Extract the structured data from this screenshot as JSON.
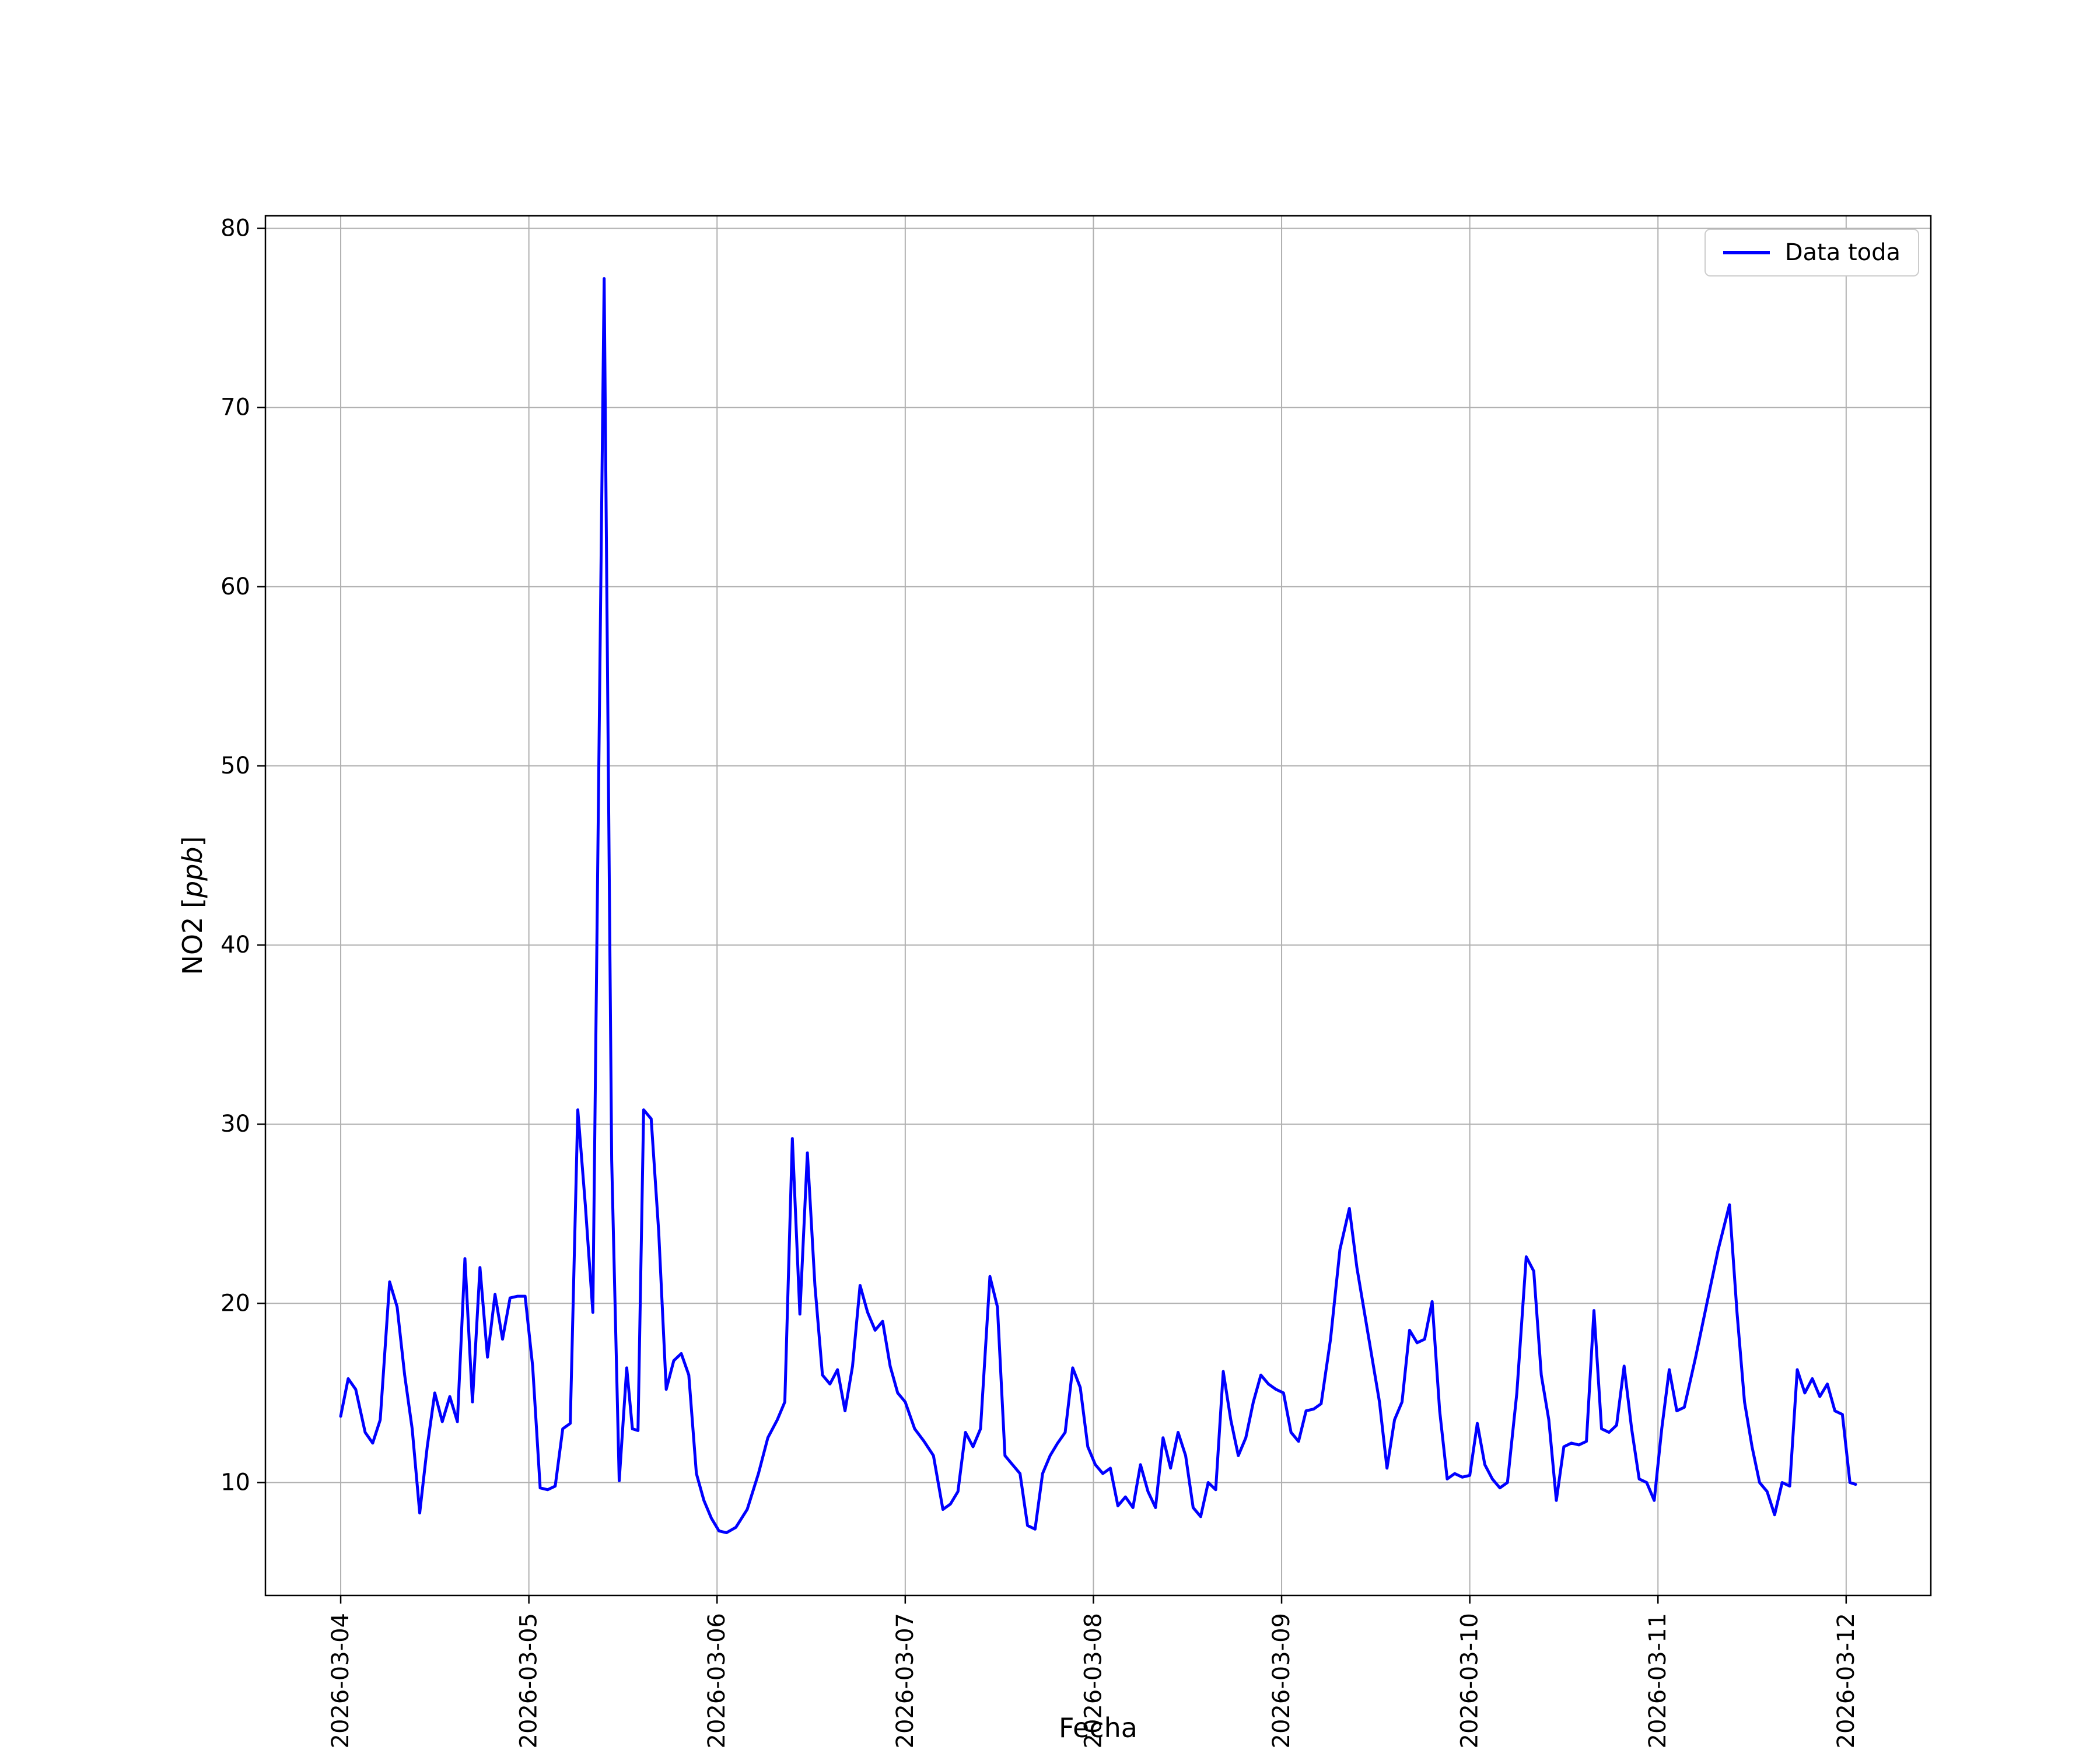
{
  "figure": {
    "background": "#ffffff"
  },
  "chart_data": {
    "type": "line",
    "title": "",
    "xlabel": "Fecha",
    "ylabel": "NO2 [ppb]",
    "ylabel_parts": {
      "prefix": "NO2 [",
      "italic": "ppb",
      "suffix": "]"
    },
    "legend_label": "Data toda",
    "legend": [
      "Data toda"
    ],
    "legend_position": "upper right",
    "grid": true,
    "line_color": "#0000ff",
    "grid_color": "#b0b0b0",
    "axis_color": "#000000",
    "x_tick_labels": [
      "2026-03-04",
      "2026-03-05",
      "2026-03-06",
      "2026-03-07",
      "2026-03-08",
      "2026-03-09",
      "2026-03-10",
      "2026-03-11",
      "2026-03-12"
    ],
    "x_tick_days": [
      0,
      1,
      2,
      3,
      4,
      5,
      6,
      7,
      8
    ],
    "y_ticks": [
      10,
      20,
      30,
      40,
      50,
      60,
      70,
      80
    ],
    "xlim_days": [
      -0.4,
      8.45
    ],
    "ylim": [
      3.7,
      80.7
    ],
    "x_unit": "days since 2026-03-04 00:00",
    "series": [
      {
        "name": "Data toda",
        "x_days": [
          0.0,
          0.04,
          0.08,
          0.13,
          0.17,
          0.21,
          0.26,
          0.3,
          0.34,
          0.38,
          0.42,
          0.46,
          0.5,
          0.54,
          0.58,
          0.62,
          0.66,
          0.7,
          0.74,
          0.78,
          0.82,
          0.86,
          0.9,
          0.94,
          0.98,
          1.02,
          1.06,
          1.1,
          1.14,
          1.18,
          1.22,
          1.26,
          1.3,
          1.34,
          1.4,
          1.44,
          1.48,
          1.52,
          1.55,
          1.58,
          1.61,
          1.65,
          1.69,
          1.73,
          1.77,
          1.81,
          1.85,
          1.89,
          1.93,
          1.97,
          2.01,
          2.05,
          2.1,
          2.16,
          2.22,
          2.27,
          2.32,
          2.36,
          2.4,
          2.44,
          2.48,
          2.52,
          2.56,
          2.6,
          2.64,
          2.68,
          2.72,
          2.76,
          2.8,
          2.84,
          2.88,
          2.92,
          2.96,
          3.0,
          3.05,
          3.1,
          3.15,
          3.2,
          3.24,
          3.28,
          3.32,
          3.36,
          3.4,
          3.45,
          3.49,
          3.53,
          3.57,
          3.61,
          3.65,
          3.69,
          3.73,
          3.77,
          3.81,
          3.85,
          3.89,
          3.93,
          3.97,
          4.01,
          4.05,
          4.09,
          4.13,
          4.17,
          4.21,
          4.25,
          4.29,
          4.33,
          4.37,
          4.41,
          4.45,
          4.49,
          4.53,
          4.57,
          4.61,
          4.65,
          4.69,
          4.73,
          4.77,
          4.81,
          4.85,
          4.89,
          4.93,
          4.97,
          5.01,
          5.05,
          5.09,
          5.13,
          5.17,
          5.21,
          5.26,
          5.31,
          5.36,
          5.4,
          5.44,
          5.48,
          5.52,
          5.56,
          5.6,
          5.64,
          5.68,
          5.72,
          5.76,
          5.8,
          5.84,
          5.88,
          5.92,
          5.96,
          6.0,
          6.04,
          6.08,
          6.12,
          6.16,
          6.2,
          6.25,
          6.3,
          6.34,
          6.38,
          6.42,
          6.46,
          6.5,
          6.54,
          6.58,
          6.62,
          6.66,
          6.7,
          6.74,
          6.78,
          6.82,
          6.86,
          6.9,
          6.94,
          6.98,
          7.02,
          7.06,
          7.1,
          7.14,
          7.2,
          7.26,
          7.32,
          7.38,
          7.42,
          7.46,
          7.5,
          7.54,
          7.58,
          7.62,
          7.66,
          7.7,
          7.74,
          7.78,
          7.82,
          7.86,
          7.9,
          7.94,
          7.98,
          8.02,
          8.05
        ],
        "y": [
          13.7,
          15.8,
          15.2,
          12.8,
          12.2,
          13.5,
          21.2,
          19.8,
          16.0,
          13.0,
          8.3,
          12.0,
          15.0,
          13.4,
          14.8,
          13.4,
          22.5,
          14.5,
          22.0,
          17.0,
          20.5,
          18.0,
          20.3,
          20.4,
          20.4,
          16.5,
          9.7,
          9.6,
          9.8,
          13.0,
          13.3,
          30.8,
          25.5,
          19.5,
          77.2,
          28.0,
          10.1,
          16.4,
          13.0,
          12.9,
          30.8,
          30.3,
          24.0,
          15.2,
          16.8,
          17.2,
          16.0,
          10.5,
          9.0,
          8.0,
          7.3,
          7.2,
          7.5,
          8.5,
          10.5,
          12.5,
          13.5,
          14.5,
          29.2,
          19.4,
          28.4,
          21.0,
          16.0,
          15.5,
          16.3,
          14.0,
          16.5,
          21.0,
          19.5,
          18.5,
          19.0,
          16.5,
          15.0,
          14.5,
          13.0,
          12.3,
          11.5,
          8.5,
          8.8,
          9.5,
          12.8,
          12.0,
          13.0,
          21.5,
          19.8,
          11.5,
          11.0,
          10.5,
          7.6,
          7.4,
          10.5,
          11.5,
          12.2,
          12.8,
          16.4,
          15.3,
          12.0,
          11.0,
          10.5,
          10.8,
          8.7,
          9.2,
          8.6,
          11.0,
          9.5,
          8.6,
          12.5,
          10.8,
          12.8,
          11.5,
          8.6,
          8.1,
          10.0,
          9.6,
          16.2,
          13.5,
          11.5,
          12.5,
          14.5,
          16.0,
          15.5,
          15.2,
          15.0,
          12.8,
          12.3,
          14.0,
          14.1,
          14.4,
          18.0,
          23.0,
          25.3,
          22.0,
          19.5,
          17.0,
          14.5,
          10.8,
          13.5,
          14.5,
          18.5,
          17.8,
          18.0,
          20.1,
          14.0,
          10.2,
          10.5,
          10.3,
          10.4,
          13.3,
          11.0,
          10.2,
          9.7,
          10.0,
          15.0,
          22.6,
          21.8,
          16.0,
          13.5,
          9.0,
          12.0,
          12.2,
          12.1,
          12.3,
          19.6,
          13.0,
          12.8,
          13.2,
          16.5,
          13.0,
          10.2,
          10.0,
          9.0,
          13.0,
          16.3,
          14.0,
          14.2,
          17.0,
          20.0,
          23.0,
          25.5,
          19.5,
          14.5,
          12.0,
          10.0,
          9.5,
          8.2,
          10.0,
          9.8,
          16.3,
          15.0,
          15.8,
          14.8,
          15.5,
          14.0,
          13.8,
          10.0,
          9.9
        ]
      }
    ]
  }
}
